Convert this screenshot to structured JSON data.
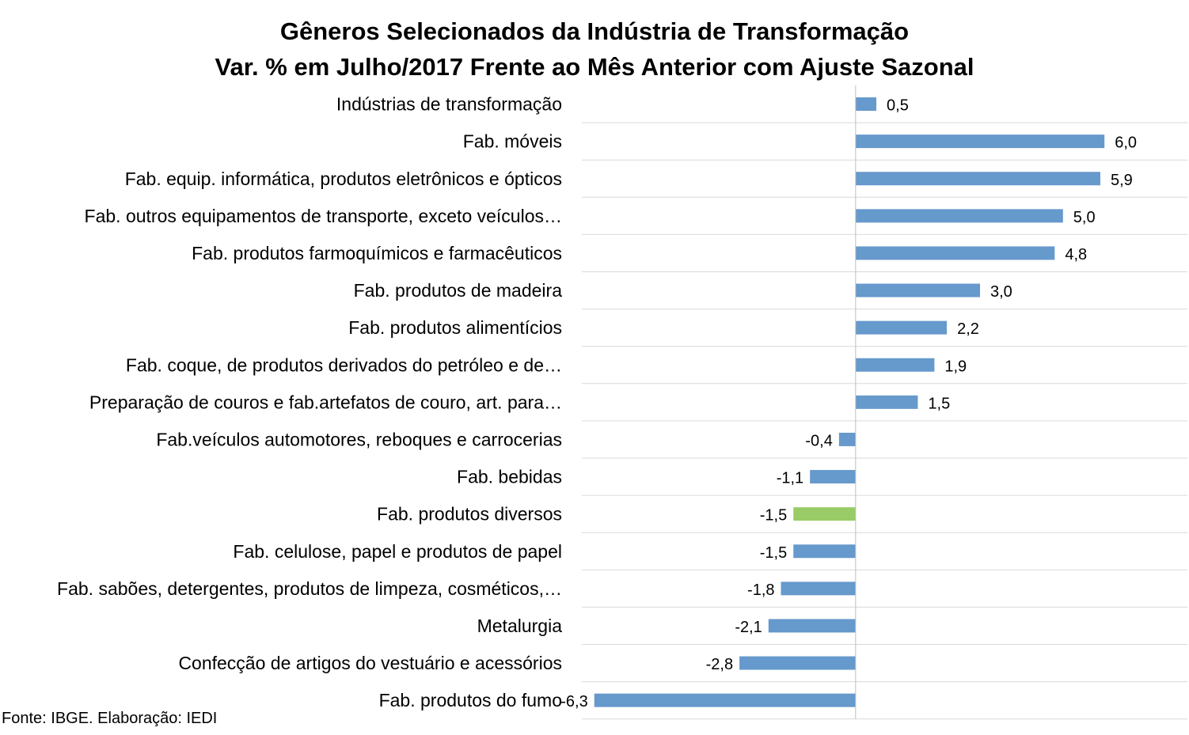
{
  "chart_data": {
    "type": "bar",
    "orientation": "horizontal",
    "title": "Gêneros Selecionados da Indústria de Transformação",
    "subtitle": "Var. % em Julho/2017 Frente ao Mês Anterior com Ajuste Sazonal",
    "categories": [
      "Indústrias de transformação",
      "Fab. móveis",
      "Fab. equip. informática, produtos eletrônicos e ópticos",
      "Fab. outros equipamentos de transporte, exceto veículos…",
      "Fab. produtos farmoquímicos e farmacêuticos",
      "Fab. produtos de madeira",
      "Fab. produtos alimentícios",
      "Fab. coque, de produtos derivados do petróleo e de…",
      "Preparação de couros e fab.artefatos de couro, art. para…",
      "Fab.veículos automotores, reboques e carrocerias",
      "Fab. bebidas",
      "Fab. produtos diversos",
      "Fab. celulose, papel e produtos de papel",
      "Fab. sabões, detergentes, produtos de limpeza, cosméticos,…",
      "Metalurgia",
      "Confecção de artigos do vestuário e acessórios",
      "Fab. produtos do fumo"
    ],
    "values": [
      0.5,
      6.0,
      5.9,
      5.0,
      4.8,
      3.0,
      2.2,
      1.9,
      1.5,
      -0.4,
      -1.1,
      -1.5,
      -1.5,
      -1.8,
      -2.1,
      -2.8,
      -6.3
    ],
    "value_labels": [
      "0,5",
      "6,0",
      "5,9",
      "5,0",
      "4,8",
      "3,0",
      "2,2",
      "1,9",
      "1,5",
      "-0,4",
      "-1,1",
      "-1,5",
      "-1,5",
      "-1,8",
      "-2,1",
      "-2,8",
      "-6,3"
    ],
    "xlim": [
      -6.6,
      8.0
    ],
    "grid": "horizontal lines between categories",
    "legend": "none",
    "colors": {
      "bar": "#6699CC",
      "highlight_bar": "#99CC66",
      "gridline": "#D9D9D9",
      "axis": "#BFBFBF"
    },
    "highlight_index": 11
  },
  "source_note": "Fonte: IBGE. Elaboração: IEDI"
}
